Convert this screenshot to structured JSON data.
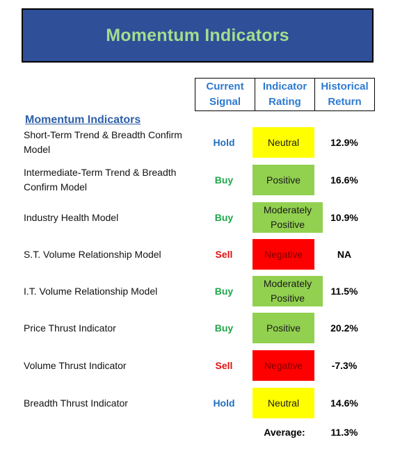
{
  "title": "Momentum Indicators",
  "header": {
    "col1": [
      "Current",
      "Signal"
    ],
    "col2": [
      "Indicator",
      "Rating"
    ],
    "col3": [
      "Historical",
      "Return"
    ]
  },
  "section_title": "Momentum Indicators",
  "colors": {
    "buy": "#1fa64a",
    "sell": "#e01010",
    "hold": "#1f6fc0",
    "Positive": "#92d050",
    "Moderately Positive": "#92d050",
    "Neutral": "#ffff00",
    "Negative": "#ff0000"
  },
  "rows": [
    {
      "name": "Short-Term Trend & Breadth Confirm Model",
      "signal": "Hold",
      "rating": "Neutral",
      "return": "12.9%"
    },
    {
      "name": "Intermediate-Term Trend & Breadth Confirm Model",
      "signal": "Buy",
      "rating": "Positive",
      "return": "16.6%"
    },
    {
      "name": "Industry Health Model",
      "signal": "Buy",
      "rating": "Moderately Positive",
      "return": "10.9%"
    },
    {
      "name": "S.T. Volume Relationship Model",
      "signal": "Sell",
      "rating": "Negative",
      "return": "NA"
    },
    {
      "name": "I.T. Volume Relationship Model",
      "signal": "Buy",
      "rating": "Moderately Positive",
      "return": "11.5%"
    },
    {
      "name": "Price Thrust Indicator",
      "signal": "Buy",
      "rating": "Positive",
      "return": "20.2%"
    },
    {
      "name": "Volume Thrust Indicator",
      "signal": "Sell",
      "rating": "Negative",
      "return": "-7.3%"
    },
    {
      "name": "Breadth Thrust Indicator",
      "signal": "Hold",
      "rating": "Neutral",
      "return": "14.6%"
    }
  ],
  "average": {
    "label": "Average:",
    "value": "11.3%"
  }
}
